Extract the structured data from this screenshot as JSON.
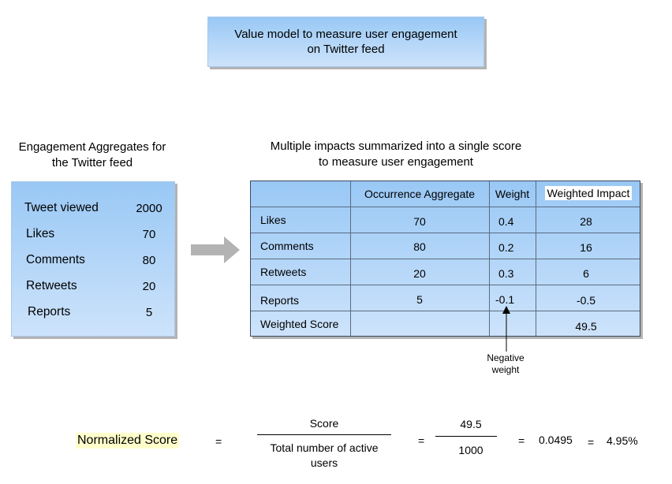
{
  "title": {
    "line1": "Value model to measure user engagement",
    "line2": "on Twitter feed"
  },
  "aggregates": {
    "caption_line1": "Engagement Aggregates for",
    "caption_line2": "the Twitter feed",
    "rows": [
      {
        "label": "Tweet viewed",
        "value": "2000"
      },
      {
        "label": "Likes",
        "value": "70"
      },
      {
        "label": "Comments",
        "value": "80"
      },
      {
        "label": "Retweets",
        "value": "20"
      },
      {
        "label": "Reports",
        "value": "5"
      }
    ]
  },
  "summary": {
    "caption_line1": "Multiple impacts summarized into a single score",
    "caption_line2": "to measure user engagement",
    "headers": [
      "",
      "Occurrence Aggregate",
      "Weight",
      "Weighted Impact"
    ],
    "rows": [
      {
        "label": "Likes",
        "occurrence": "70",
        "weight": "0.4",
        "impact": "28"
      },
      {
        "label": "Comments",
        "occurrence": "80",
        "weight": "0.2",
        "impact": "16"
      },
      {
        "label": "Retweets",
        "occurrence": "20",
        "weight": "0.3",
        "impact": "6"
      },
      {
        "label": "Reports",
        "occurrence": "5",
        "weight": "-0.1",
        "impact": "-0.5"
      },
      {
        "label": "Weighted Score",
        "occurrence": "",
        "weight": "",
        "impact": "49.5"
      }
    ],
    "annotation_line1": "Negative",
    "annotation_line2": "weight"
  },
  "formula": {
    "label": "Normalized Score",
    "eq1": "=",
    "numerator": "Score",
    "denominator_line1": "Total number of active",
    "denominator_line2": "users",
    "eq2": "=",
    "num_value": "49.5",
    "den_value": "1000",
    "eq3": "=",
    "result": "0.0495",
    "eq4": "=",
    "percent": "4.95%"
  },
  "colors": {
    "box_top": "#99c8f5",
    "box_bottom": "#cde3fb",
    "arrow": "#b3b3b3",
    "highlight": "#ffffcc"
  }
}
